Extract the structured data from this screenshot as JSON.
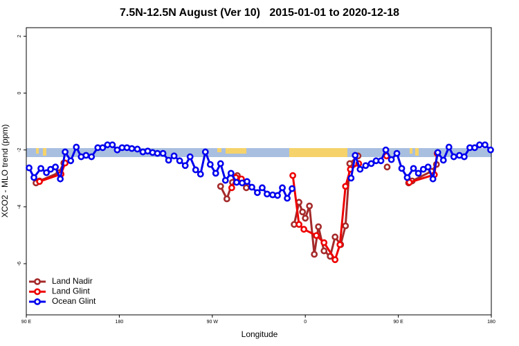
{
  "chart_data": {
    "type": "line",
    "title": "7.5N-12.5N August (Ver 10)   2015-01-01 to 2020-12-18",
    "xlabel": "Longitude",
    "ylabel": "XCO2 - MLO trend (ppm)",
    "xlim": [
      90,
      540
    ],
    "ylim": [
      -7.8,
      2.3
    ],
    "xticks": [
      {
        "value": 90,
        "label": "90 E"
      },
      {
        "value": 180,
        "label": "180"
      },
      {
        "value": 270,
        "label": "90 W"
      },
      {
        "value": 360,
        "label": "0"
      },
      {
        "value": 450,
        "label": "90 E"
      },
      {
        "value": 540,
        "label": "180"
      }
    ],
    "yticks": [
      2,
      0,
      -2,
      -4,
      -6
    ],
    "legend": "bottom-left",
    "series": [
      {
        "name": "Land Nadir",
        "color": "#a52a2a",
        "x": [
          99.4,
          102.8,
          121.6,
          126.3,
          null,
          278.0,
          284.1,
          289.5,
          294.2,
          298.2,
          302.9,
          null,
          349.2,
          353.9,
          357.3,
          360.0,
          364.0,
          368.7,
          372.7,
          378.1,
          384.1,
          388.8,
          394.2,
          398.9,
          403.0,
          411.0,
          null,
          439.2,
          null,
          460.0,
          463.4,
          482.2,
          486.9
        ],
        "values": [
          -3.16,
          -3.09,
          -2.8,
          -2.46,
          null,
          -3.28,
          -3.72,
          -3.14,
          -2.9,
          -3.11,
          -3.33,
          null,
          -4.62,
          -3.84,
          -4.18,
          -4.4,
          -3.97,
          -5.67,
          -4.7,
          -5.55,
          -5.74,
          -5.06,
          -5.33,
          -4.67,
          -2.48,
          -2.21,
          null,
          -2.6,
          null,
          -3.16,
          -3.09,
          -2.75,
          -2.51
        ]
      },
      {
        "name": "Land Glint",
        "color": "#ee0000",
        "x": [
          102.8,
          123.6,
          127.6,
          null,
          288.8,
          292.8,
          298.2,
          null,
          347.9,
          353.9,
          358.6,
          370.7,
          378.1,
          388.8,
          393.5,
          398.9,
          403.6,
          411.7,
          null,
          438.6,
          null,
          460.7,
          484.9,
          487.6
        ],
        "values": [
          -3.11,
          -2.85,
          -2.46,
          null,
          -3.33,
          -2.97,
          -3.02,
          null,
          -2.9,
          -4.62,
          -4.79,
          -5.01,
          -5.26,
          -5.86,
          -5.33,
          -3.28,
          -2.68,
          -2.48,
          null,
          -2.21,
          null,
          -3.14,
          -2.87,
          -2.12
        ]
      },
      {
        "name": "Ocean Glint",
        "color": "#0000ee",
        "x": [
          92.7,
          97.4,
          104.1,
          109.5,
          113.5,
          118.2,
          122.9,
          127.6,
          133.0,
          138.4,
          143.1,
          147.8,
          153.1,
          159.2,
          163.9,
          168.6,
          173.3,
          178.0,
          182.7,
          187.4,
          192.1,
          197.5,
          202.8,
          207.5,
          212.2,
          216.9,
          222.3,
          227.7,
          233.0,
          238.4,
          243.8,
          248.5,
          253.9,
          258.6,
          263.3,
          268.0,
          273.3,
          278.0,
          282.7,
          288.1,
          293.5,
          298.9,
          303.6,
          308.3,
          313.6,
          318.3,
          323.0,
          328.4,
          333.1,
          337.8,
          342.5,
          347.2,
          null,
          404.3,
          408.3,
          413.0,
          418.4,
          423.8,
          428.5,
          433.2,
          437.9,
          443.3,
          448.6,
          453.3,
          458.6,
          464.7,
          469.4,
          474.2,
          478.8,
          483.5,
          488.2,
          493.6,
          499.0,
          503.7,
          509.1,
          513.8,
          519.2,
          523.9,
          528.6,
          533.9,
          539.3
        ],
        "values": [
          -2.63,
          -2.97,
          -2.65,
          -2.8,
          -2.68,
          -2.6,
          -3.02,
          -2.07,
          -2.38,
          -1.9,
          -2.24,
          -2.19,
          -2.24,
          -1.92,
          -1.92,
          -1.82,
          -1.82,
          -2.0,
          -1.92,
          -1.92,
          -1.95,
          -1.97,
          -2.07,
          -2.04,
          -2.09,
          -2.12,
          -2.12,
          -2.36,
          -2.21,
          -2.38,
          -2.55,
          -2.24,
          -2.7,
          -2.85,
          -2.07,
          -2.51,
          -2.82,
          -2.48,
          -3.07,
          -2.82,
          -3.14,
          -3.16,
          -3.11,
          -3.31,
          -3.5,
          -3.33,
          -3.55,
          -3.58,
          -3.6,
          -3.33,
          -3.7,
          -3.36,
          null,
          -2.99,
          -2.19,
          -2.68,
          -2.55,
          -2.48,
          -2.38,
          -2.38,
          -2.0,
          -2.34,
          -2.12,
          -2.65,
          -2.97,
          -2.65,
          -2.82,
          -2.68,
          -2.6,
          -3.02,
          -2.09,
          -2.36,
          -1.9,
          -2.24,
          -2.19,
          -2.24,
          -1.92,
          -1.92,
          -1.82,
          -1.82,
          -2.0
        ]
      }
    ]
  }
}
